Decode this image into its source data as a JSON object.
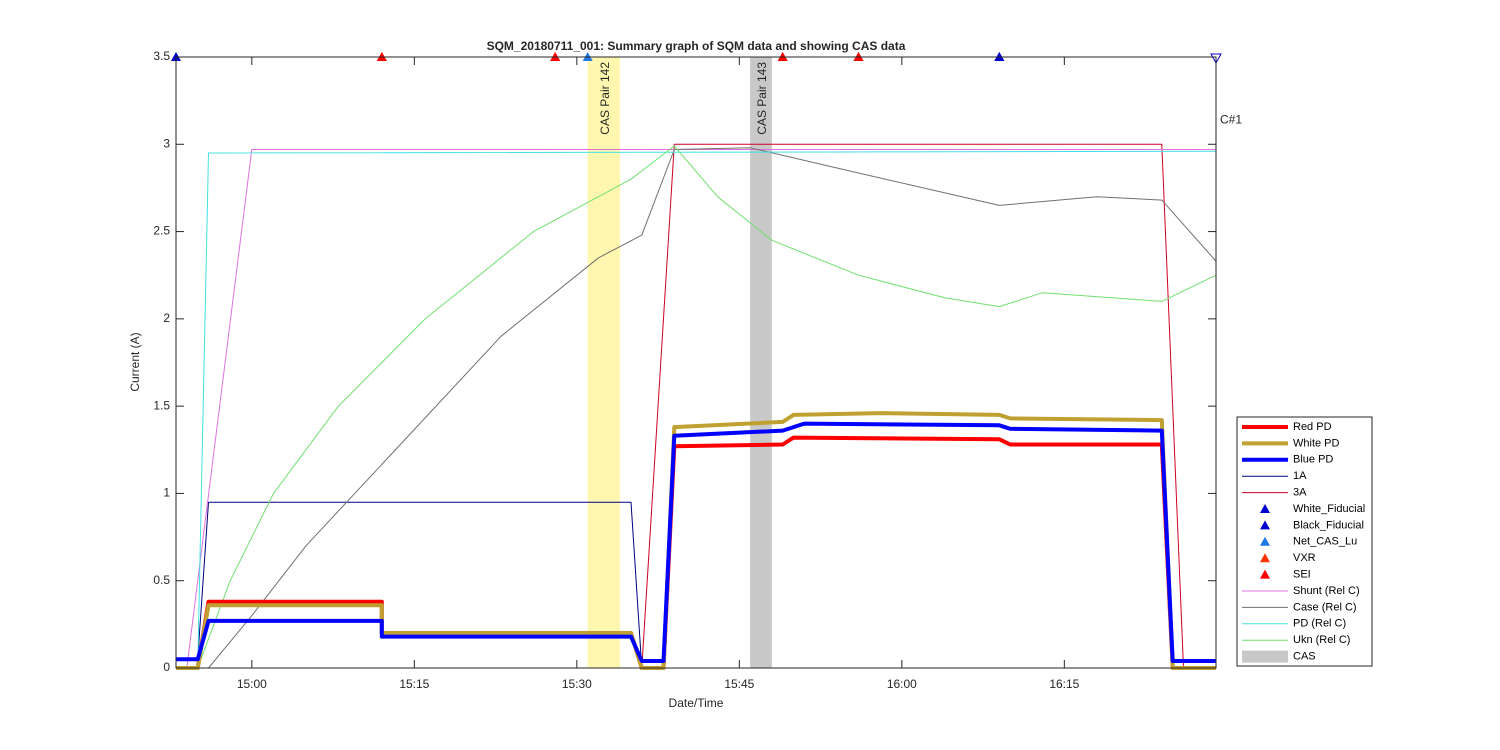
{
  "chart_data": {
    "type": "line",
    "title": "SQM_20180711_001: Summary graph of SQM data and showing CAS data",
    "xlabel": "Date/Time",
    "ylabel": "Current (A)",
    "xlim": [
      "14:53",
      "16:29"
    ],
    "xticks": [
      "15:00",
      "15:15",
      "15:30",
      "15:45",
      "16:00",
      "16:15"
    ],
    "ylim": [
      0,
      3.5
    ],
    "yticks": [
      0,
      0.5,
      1,
      1.5,
      2,
      2.5,
      3,
      3.5
    ],
    "series": [
      {
        "name": "Red PD",
        "color": "#ff0000",
        "width": 4,
        "x": [
          "14:53",
          "14:55",
          "14:56",
          "15:12",
          "15:12",
          "15:35",
          "15:36",
          "15:38",
          "15:39",
          "15:49",
          "15:50",
          "16:09",
          "16:10",
          "16:24",
          "16:25",
          "16:29"
        ],
        "values": [
          0,
          0,
          0.38,
          0.38,
          0.2,
          0.2,
          0,
          0,
          1.27,
          1.28,
          1.32,
          1.31,
          1.28,
          1.28,
          0,
          0
        ]
      },
      {
        "name": "White PD",
        "color": "#bfa030",
        "width": 4,
        "x": [
          "14:53",
          "14:55",
          "14:56",
          "15:12",
          "15:12",
          "15:35",
          "15:36",
          "15:38",
          "15:39",
          "15:49",
          "15:50",
          "15:58",
          "16:09",
          "16:10",
          "16:24",
          "16:25",
          "16:29"
        ],
        "values": [
          0,
          0,
          0.36,
          0.36,
          0.2,
          0.2,
          0,
          0,
          1.38,
          1.41,
          1.45,
          1.46,
          1.45,
          1.43,
          1.42,
          0,
          0
        ]
      },
      {
        "name": "Blue PD",
        "color": "#0000ff",
        "width": 4,
        "x": [
          "14:53",
          "14:55",
          "14:56",
          "15:12",
          "15:12",
          "15:35",
          "15:36",
          "15:38",
          "15:39",
          "15:49",
          "15:51",
          "16:09",
          "16:10",
          "16:24",
          "16:25",
          "16:29"
        ],
        "values": [
          0.05,
          0.05,
          0.27,
          0.27,
          0.18,
          0.18,
          0.04,
          0.04,
          1.33,
          1.36,
          1.4,
          1.39,
          1.37,
          1.36,
          0.04,
          0.04
        ]
      },
      {
        "name": "1A",
        "color": "#000080",
        "width": 1,
        "x": [
          "14:53",
          "14:55",
          "14:56",
          "15:35",
          "15:36",
          "16:29"
        ],
        "values": [
          0.05,
          0.05,
          0.95,
          0.95,
          0,
          0
        ]
      },
      {
        "name": "3A",
        "color": "#d00020",
        "width": 1,
        "x": [
          "14:53",
          "15:36",
          "15:39",
          "16:24",
          "16:26",
          "16:29"
        ],
        "values": [
          0,
          0,
          3,
          3,
          0,
          0
        ]
      },
      {
        "name": "White_Fiducial",
        "color": "#0000cc",
        "marker": "^",
        "x": [
          "14:53",
          "16:09"
        ],
        "values": [
          3.5,
          3.5
        ]
      },
      {
        "name": "Black_Fiducial",
        "color": "#0000cc",
        "marker": "^",
        "x": [
          "16:09"
        ],
        "values": [
          3.5
        ]
      },
      {
        "name": "Net_CAS_Lu",
        "color": "#1e78e6",
        "marker": "^",
        "x": [
          "15:31"
        ],
        "values": [
          3.5
        ]
      },
      {
        "name": "VXR",
        "color": "#ff3300",
        "marker": "^",
        "x": [
          "15:12",
          "15:28",
          "15:49",
          "15:56"
        ],
        "values": [
          3.5,
          3.5,
          3.5,
          3.5
        ]
      },
      {
        "name": "SEI",
        "color": "#ff0000",
        "marker": "^",
        "x": [
          "15:12",
          "15:28",
          "15:49",
          "15:56"
        ],
        "values": [
          3.5,
          3.5,
          3.5,
          3.5
        ]
      },
      {
        "name": "Shunt (Rel C)",
        "color": "#e070e0",
        "width": 1,
        "x": [
          "14:53",
          "14:54",
          "15:00",
          "16:29"
        ],
        "values": [
          0,
          0,
          2.97,
          2.97
        ]
      },
      {
        "name": "Case (Rel C)",
        "color": "#707070",
        "width": 1,
        "x": [
          "14:53",
          "14:56",
          "15:00",
          "15:05",
          "15:14",
          "15:23",
          "15:32",
          "15:36",
          "15:39",
          "15:46",
          "15:55",
          "16:09",
          "16:18",
          "16:24",
          "16:29"
        ],
        "values": [
          0,
          0,
          0.3,
          0.7,
          1.3,
          1.9,
          2.35,
          2.48,
          2.97,
          2.98,
          2.85,
          2.65,
          2.7,
          2.68,
          2.33
        ]
      },
      {
        "name": "PD (Rel C)",
        "color": "#40e0e0",
        "width": 1,
        "x": [
          "14:53",
          "14:55",
          "14:56",
          "16:29"
        ],
        "values": [
          0,
          0,
          2.95,
          2.96
        ]
      },
      {
        "name": "Ukn (Rel C)",
        "color": "#70e070",
        "width": 1,
        "x": [
          "14:53",
          "14:55",
          "14:58",
          "15:02",
          "15:08",
          "15:16",
          "15:26",
          "15:35",
          "15:39",
          "15:43",
          "15:48",
          "15:56",
          "16:04",
          "16:09",
          "16:13",
          "16:24",
          "16:29"
        ],
        "values": [
          0,
          0,
          0.5,
          1,
          1.5,
          2,
          2.5,
          2.8,
          2.99,
          2.7,
          2.45,
          2.25,
          2.12,
          2.07,
          2.15,
          2.1,
          2.25
        ]
      }
    ],
    "shading": {
      "name": "CAS",
      "color": "#c8c8c8",
      "regions": [
        {
          "label": "CAS Pair 142",
          "start": "15:31",
          "end": "15:34",
          "color": "#fff7b0"
        },
        {
          "label": "CAS Pair 143",
          "start": "15:46",
          "end": "15:48",
          "color": "#c8c8c8"
        }
      ]
    },
    "annotation": {
      "text": "C#1",
      "x": "16:29",
      "y": 3
    }
  }
}
